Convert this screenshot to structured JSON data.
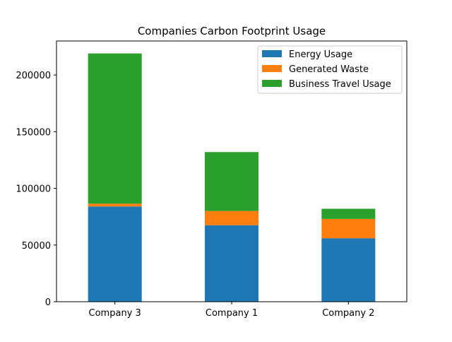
{
  "chart_data": {
    "type": "bar",
    "stacked": true,
    "title": "Companies Carbon Footprint Usage",
    "xlabel": "",
    "ylabel": "",
    "categories": [
      "Company 3",
      "Company 1",
      "Company 2"
    ],
    "ylim": [
      0,
      230000
    ],
    "yticks": [
      0,
      50000,
      100000,
      150000,
      200000
    ],
    "ytick_labels": [
      "0",
      "50000",
      "100000",
      "150000",
      "200000"
    ],
    "legend_position": "top-right",
    "grid": false,
    "series": [
      {
        "name": "Energy Usage",
        "color": "#1f77b4",
        "values": [
          84000,
          67500,
          56000
        ]
      },
      {
        "name": "Generated Waste",
        "color": "#ff7f0e",
        "values": [
          2500,
          12500,
          17000
        ]
      },
      {
        "name": "Business Travel Usage",
        "color": "#2ca02c",
        "values": [
          132500,
          52000,
          9000
        ]
      }
    ]
  }
}
